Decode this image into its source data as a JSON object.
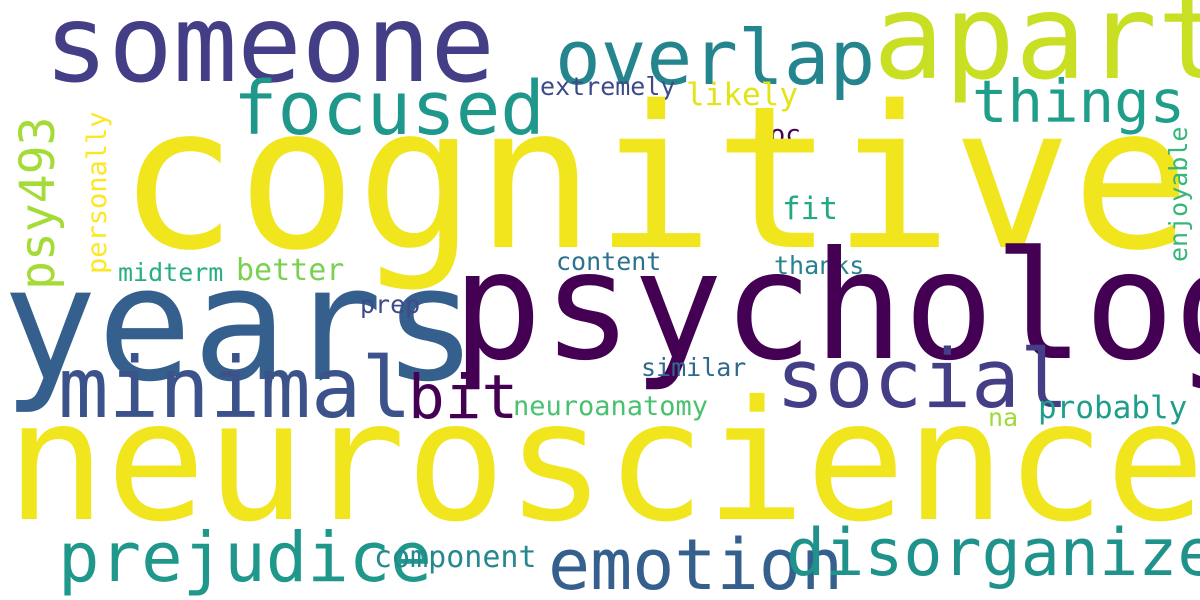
{
  "words": {
    "cognitive": {
      "text": "cognitive",
      "color": "#f1e51d"
    },
    "neuroscience": {
      "text": "neuroscience",
      "color": "#f1e51d"
    },
    "psychology": {
      "text": "psychology",
      "color": "#440154"
    },
    "someone": {
      "text": "someone",
      "color": "#433e85"
    },
    "years": {
      "text": "years",
      "color": "#355f8d"
    },
    "apart": {
      "text": "apart",
      "color": "#c8df23"
    },
    "overlap": {
      "text": "overlap",
      "color": "#25858e"
    },
    "focused": {
      "text": "focused",
      "color": "#1f988b"
    },
    "things": {
      "text": "things",
      "color": "#1f9e89"
    },
    "minimal": {
      "text": "minimal",
      "color": "#3b528b"
    },
    "social": {
      "text": "social",
      "color": "#433e85"
    },
    "bit": {
      "text": "bit",
      "color": "#440154"
    },
    "prejudice": {
      "text": "prejudice",
      "color": "#1f978b"
    },
    "emotion": {
      "text": "emotion",
      "color": "#355f8d"
    },
    "disorganized": {
      "text": "disorganized",
      "color": "#20928c"
    },
    "psy493": {
      "text": "psy493",
      "color": "#a5db36"
    },
    "personally": {
      "text": "personally",
      "color": "#fde725"
    },
    "enjoyable": {
      "text": "enjoyable",
      "color": "#35b779"
    },
    "extremely": {
      "text": "extremely",
      "color": "#3e4989"
    },
    "likely": {
      "text": "likely",
      "color": "#e2e418"
    },
    "doc": {
      "text": "doc",
      "color": "#440154"
    },
    "fit": {
      "text": "fit",
      "color": "#22a884"
    },
    "midterm": {
      "text": "midterm",
      "color": "#29af7f"
    },
    "better": {
      "text": "better",
      "color": "#7ad151"
    },
    "content": {
      "text": "content",
      "color": "#2c728e"
    },
    "thanks": {
      "text": "thanks",
      "color": "#26828e"
    },
    "prep": {
      "text": "prep",
      "color": "#3e4a89"
    },
    "similar": {
      "text": "similar",
      "color": "#31688e"
    },
    "neuroanatomy": {
      "text": "neuroanatomy",
      "color": "#4ac16d"
    },
    "na": {
      "text": "na",
      "color": "#a0da39"
    },
    "probably": {
      "text": "probably",
      "color": "#1f9e89"
    },
    "component": {
      "text": "component",
      "color": "#23898e"
    }
  }
}
